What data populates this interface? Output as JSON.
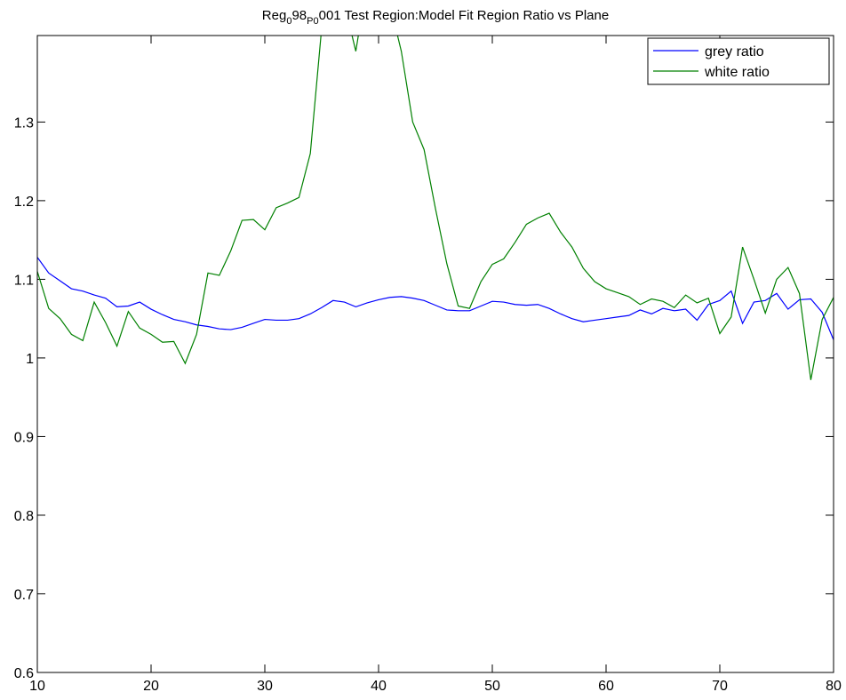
{
  "chart_data": {
    "type": "line",
    "title": [
      {
        "text": "Reg"
      },
      {
        "text": "0",
        "sub": true
      },
      {
        "text": "98"
      },
      {
        "text": "P0",
        "sub": true
      },
      {
        "text": "001 Test Region:Model Fit Region Ratio vs Plane"
      }
    ],
    "x": [
      10,
      11,
      12,
      13,
      14,
      15,
      16,
      17,
      18,
      19,
      20,
      21,
      22,
      23,
      24,
      25,
      26,
      27,
      28,
      29,
      30,
      31,
      32,
      33,
      34,
      35,
      36,
      37,
      38,
      39,
      40,
      41,
      42,
      43,
      44,
      45,
      46,
      47,
      48,
      49,
      50,
      51,
      52,
      53,
      54,
      55,
      56,
      57,
      58,
      59,
      60,
      61,
      62,
      63,
      64,
      65,
      66,
      67,
      68,
      69,
      70,
      71,
      72,
      73,
      74,
      75,
      76,
      77,
      78,
      79,
      80
    ],
    "series": [
      {
        "name": "grey ratio",
        "color": "#0000ff",
        "values": [
          1.128,
          1.108,
          1.098,
          1.088,
          1.085,
          1.08,
          1.076,
          1.065,
          1.066,
          1.071,
          1.062,
          1.055,
          1.049,
          1.046,
          1.042,
          1.04,
          1.037,
          1.036,
          1.039,
          1.044,
          1.049,
          1.048,
          1.048,
          1.05,
          1.056,
          1.064,
          1.073,
          1.071,
          1.065,
          1.07,
          1.074,
          1.077,
          1.078,
          1.076,
          1.073,
          1.067,
          1.061,
          1.06,
          1.06,
          1.066,
          1.072,
          1.071,
          1.068,
          1.067,
          1.068,
          1.063,
          1.056,
          1.05,
          1.046,
          1.048,
          1.05,
          1.052,
          1.054,
          1.061,
          1.056,
          1.063,
          1.06,
          1.062,
          1.048,
          1.068,
          1.073,
          1.085,
          1.044,
          1.071,
          1.073,
          1.082,
          1.062,
          1.074,
          1.075,
          1.058,
          1.023
        ]
      },
      {
        "name": "white ratio",
        "color": "#008000",
        "values": [
          1.11,
          1.063,
          1.05,
          1.03,
          1.022,
          1.071,
          1.045,
          1.015,
          1.059,
          1.038,
          1.03,
          1.02,
          1.021,
          0.993,
          1.03,
          1.108,
          1.105,
          1.136,
          1.175,
          1.176,
          1.163,
          1.191,
          1.197,
          1.204,
          1.26,
          1.42,
          1.5,
          1.45,
          1.39,
          1.48,
          1.5,
          1.45,
          1.39,
          1.3,
          1.265,
          1.19,
          1.12,
          1.066,
          1.063,
          1.097,
          1.119,
          1.126,
          1.147,
          1.17,
          1.178,
          1.184,
          1.16,
          1.141,
          1.114,
          1.097,
          1.088,
          1.083,
          1.078,
          1.068,
          1.075,
          1.072,
          1.064,
          1.08,
          1.07,
          1.076,
          1.031,
          1.052,
          1.141,
          1.1,
          1.057,
          1.1,
          1.115,
          1.082,
          0.972,
          1.049,
          1.077
        ]
      }
    ],
    "xlim": [
      10,
      80
    ],
    "xticks": [
      10,
      20,
      30,
      40,
      50,
      60,
      70,
      80
    ],
    "ylim": [
      0.6,
      1.41
    ],
    "yticks": [
      0.6,
      0.7,
      0.8,
      0.9,
      1,
      1.1,
      1.2,
      1.3
    ],
    "legend": "upper right"
  }
}
